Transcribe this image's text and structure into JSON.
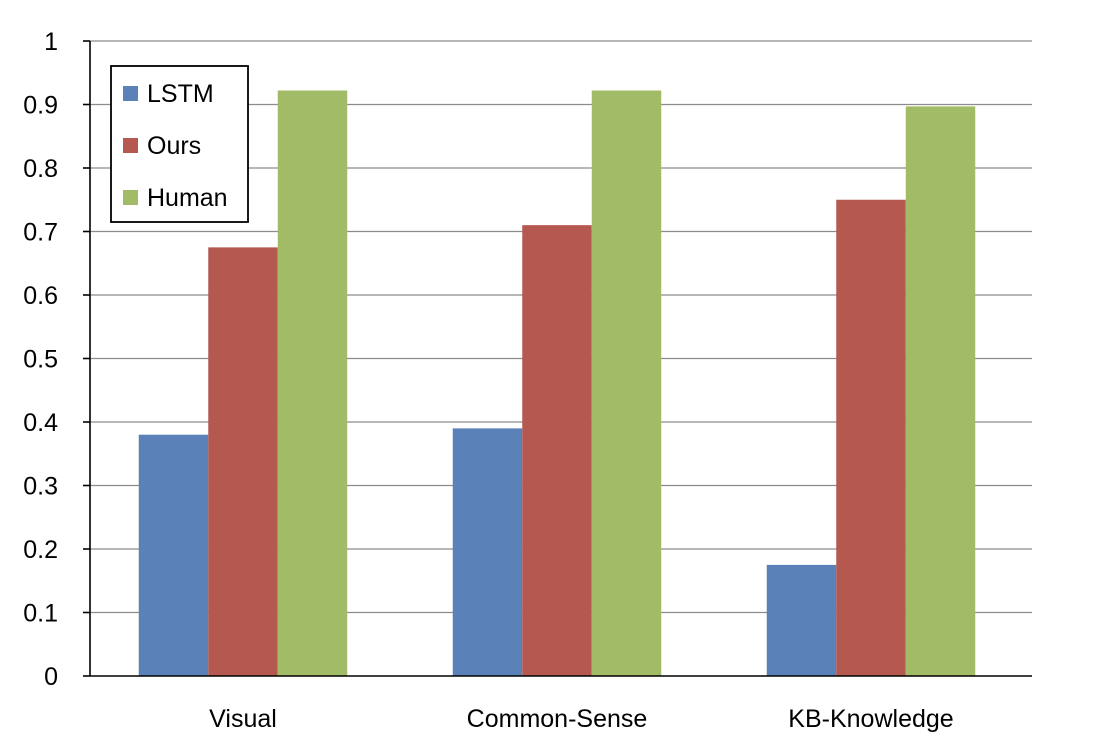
{
  "chart_data": {
    "type": "bar",
    "title": "",
    "xlabel": "",
    "ylabel": "",
    "categories": [
      "Visual",
      "Common-Sense",
      "KB-Knowledge"
    ],
    "series": [
      {
        "name": "LSTM",
        "color": "#5a82b8",
        "values": [
          0.38,
          0.39,
          0.175
        ]
      },
      {
        "name": "Ours",
        "color": "#b55950",
        "values": [
          0.675,
          0.71,
          0.75
        ]
      },
      {
        "name": "Human",
        "color": "#a2bb66",
        "values": [
          0.922,
          0.922,
          0.897
        ]
      }
    ],
    "ylim": [
      0,
      1
    ],
    "yticks": [
      "0",
      "0.1",
      "0.2",
      "0.3",
      "0.4",
      "0.5",
      "0.6",
      "0.7",
      "0.8",
      "0.9",
      "1"
    ],
    "grid": true,
    "legend_position": "top-left"
  }
}
